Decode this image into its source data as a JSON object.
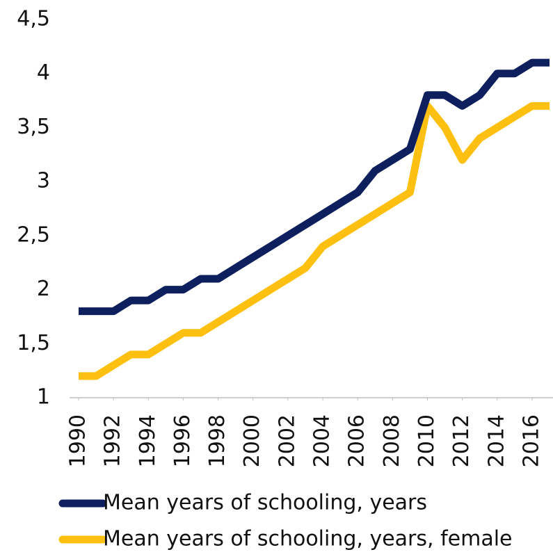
{
  "chart_data": {
    "type": "line",
    "x": [
      1990,
      1991,
      1992,
      1993,
      1994,
      1995,
      1996,
      1997,
      1998,
      1999,
      2000,
      2001,
      2002,
      2003,
      2004,
      2005,
      2006,
      2007,
      2008,
      2009,
      2010,
      2011,
      2012,
      2013,
      2014,
      2015,
      2016,
      2017
    ],
    "series": [
      {
        "name": "Mean years of schooling, years",
        "color": "#0d1f5c",
        "values": [
          1.8,
          1.8,
          1.8,
          1.9,
          1.9,
          2.0,
          2.0,
          2.1,
          2.1,
          2.2,
          2.3,
          2.4,
          2.5,
          2.6,
          2.7,
          2.8,
          2.9,
          3.1,
          3.2,
          3.3,
          3.8,
          3.8,
          3.7,
          3.8,
          4.0,
          4.0,
          4.1,
          4.1
        ]
      },
      {
        "name": "Mean years of schooling, years, female",
        "color": "#fdc010",
        "values": [
          1.2,
          1.2,
          1.3,
          1.4,
          1.4,
          1.5,
          1.6,
          1.6,
          1.7,
          1.8,
          1.9,
          2.0,
          2.1,
          2.2,
          2.4,
          2.5,
          2.6,
          2.7,
          2.8,
          2.9,
          3.7,
          3.5,
          3.2,
          3.4,
          3.5,
          3.6,
          3.7,
          3.7
        ]
      }
    ],
    "xlim": [
      1990,
      2017
    ],
    "xticks": [
      1990,
      1992,
      1994,
      1996,
      1998,
      2000,
      2002,
      2004,
      2006,
      2008,
      2010,
      2012,
      2014,
      2016
    ],
    "ylim": [
      1,
      4.5
    ],
    "yticks": [
      1,
      {
        "value": 1.5,
        "label": "1,5"
      },
      2,
      {
        "value": 2.5,
        "label": "2,5"
      },
      3,
      {
        "value": 3.5,
        "label": "3,5"
      },
      4,
      {
        "value": 4.5,
        "label": "4,5"
      }
    ],
    "grid": false,
    "legend": "bottom"
  }
}
